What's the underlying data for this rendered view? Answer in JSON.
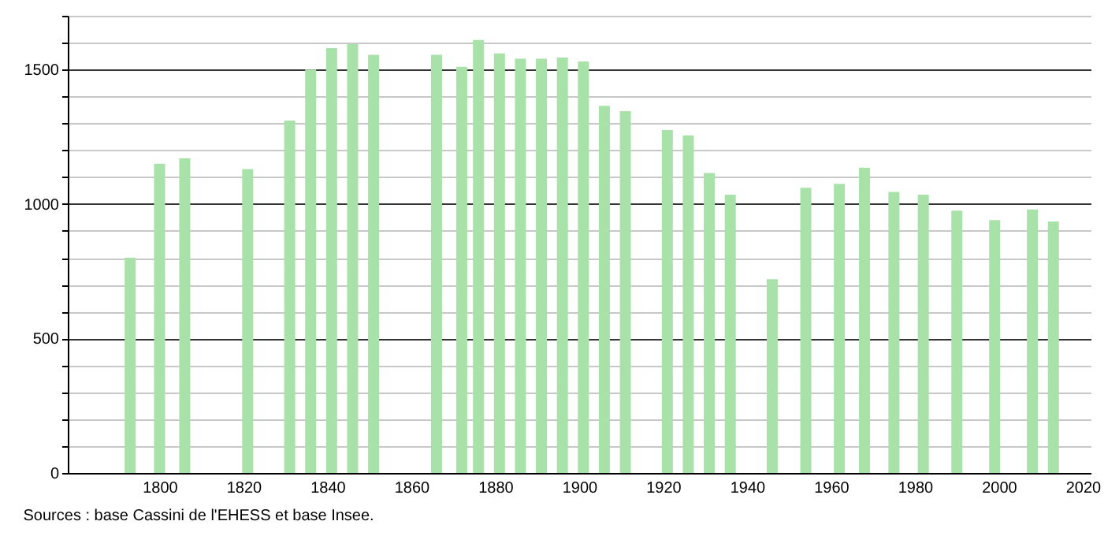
{
  "chart_data": {
    "type": "bar",
    "annotations": [
      "Sources : base Cassini de l'EHESS et base Insee."
    ],
    "x": [
      1793,
      1800,
      1806,
      1821,
      1831,
      1836,
      1841,
      1846,
      1851,
      1866,
      1872,
      1876,
      1881,
      1886,
      1891,
      1896,
      1901,
      1906,
      1911,
      1921,
      1926,
      1931,
      1936,
      1946,
      1954,
      1962,
      1968,
      1975,
      1982,
      1990,
      1999,
      2008,
      2013
    ],
    "values": [
      800,
      1150,
      1170,
      1130,
      1310,
      1500,
      1580,
      1595,
      1555,
      1555,
      1510,
      1610,
      1560,
      1540,
      1540,
      1545,
      1530,
      1365,
      1345,
      1275,
      1255,
      1115,
      1035,
      720,
      1060,
      1075,
      1135,
      1045,
      1035,
      975,
      940,
      980,
      935
    ],
    "color": "#a8e2a8",
    "xlim": [
      1780,
      2020
    ],
    "xticks": [
      1800,
      1820,
      1840,
      1860,
      1880,
      1900,
      1920,
      1940,
      1960,
      1980,
      2000,
      2020
    ],
    "ylim": [
      0,
      1700
    ],
    "yticks": [
      0,
      {
        "value": 100,
        "label": null
      },
      {
        "value": 200,
        "label": null
      },
      {
        "value": 300,
        "label": null
      },
      {
        "value": 400,
        "label": null
      },
      500,
      {
        "value": 600,
        "label": null
      },
      {
        "value": 700,
        "label": null
      },
      {
        "value": 800,
        "label": null
      },
      {
        "value": 900,
        "label": null
      },
      1000,
      {
        "value": 1100,
        "label": null
      },
      {
        "value": 1200,
        "label": null
      },
      {
        "value": 1300,
        "label": null
      },
      {
        "value": 1400,
        "label": null
      },
      1500,
      {
        "value": 1600,
        "label": null
      },
      {
        "value": 1700,
        "label": null
      }
    ],
    "grid": "y"
  }
}
